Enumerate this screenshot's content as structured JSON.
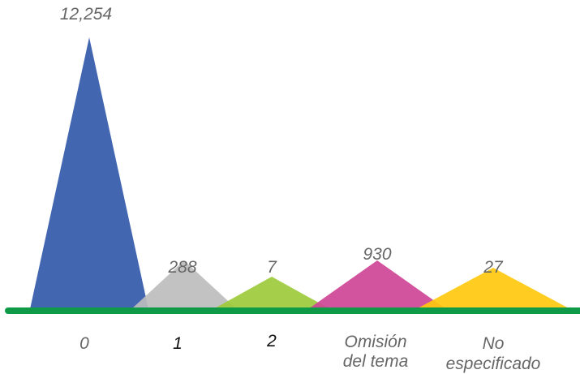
{
  "chart_data": {
    "type": "area",
    "categories": [
      "0",
      "1",
      "2",
      "Omisión del tema",
      "No especificado"
    ],
    "tick_labels": [
      [
        "0"
      ],
      [
        "1"
      ],
      [
        "2"
      ],
      [
        "Omisión",
        "del tema"
      ],
      [
        "No",
        "especificado"
      ]
    ],
    "values": [
      12254,
      288,
      7,
      930,
      27
    ],
    "value_labels": [
      "12,254",
      "288",
      "7",
      "930",
      "27"
    ],
    "colors": [
      "#4366b1",
      "#bdbdbd",
      "#9dcb3b",
      "#cf4596",
      "#ffc90e"
    ],
    "baseline_color": "#0f9a47",
    "value_label_color": "#666666",
    "tick_label_colors": [
      "#666666",
      "#111111",
      "#111111",
      "#666666",
      "#666666"
    ],
    "title": "",
    "xlabel": "",
    "ylabel": "",
    "grid": false,
    "legend": "none"
  }
}
